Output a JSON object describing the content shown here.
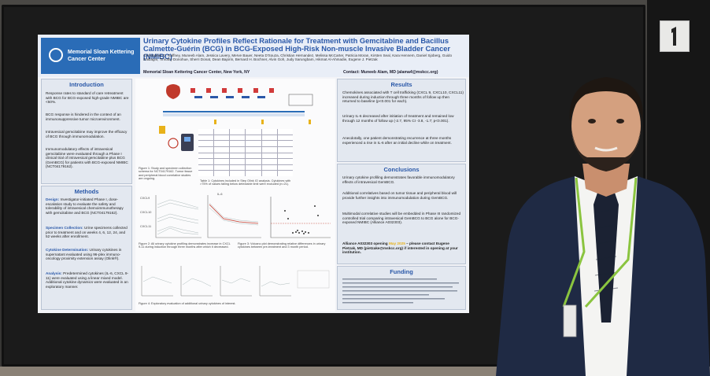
{
  "poster": {
    "logo": [
      "Memorial Sloan Kettering",
      "Cancer Center"
    ],
    "title": "Urinary Cytokine Profiles Reflect Rationale for Treatment with Gemcitabine and Bacillus Calmette-Guérin (BCG) in BCG-Exposed High-Risk Non-muscle Invasive Bladder Cancer (NMIBC)",
    "authors": "Christopher D. Gaffney, Muneeb Alam, Jessica Lavery, Merve Bauer, Neeta D'Souza, Christian Hernandez, Melissa McCarter, Patricia Moran, Kirsten Seal, Kara Hennem, Daniel Sjoberg, Guido Dalbagni, Timothy Donohue, Sherri Donat, Dean Bajorin, Bernard H. Bochner, Alvin Goh, Judy Sarungbam, Hikmat Al-Ahmadie, Eugene J. Pietzak",
    "institution": "Memorial Sloan Kettering Cancer Center, New York, NY",
    "contact": "Contact: Muneeb Alam, MD (alama4@mskcc.org)",
    "intro": {
      "heading": "Introduction",
      "bullets": [
        "Response rates to standard of care retreatment with BCG for BCG-exposed high-grade NMIBC are <50%.",
        "BCG response is hindered in the context of an immunosuppressive tumor microenvironment.",
        "Intravesical gemcitabine may improve the efficacy of BCG through immunomodulation.",
        "Immunomodulatory effects of intravesical gemcitabine were evaluated through a Phase I clinical trial of intravesical gemcitabine plus BCG (GemBCG) for patients with BCG-exposed NMIBC (NCT04179162)."
      ]
    },
    "methods": {
      "heading": "Methods",
      "items": [
        {
          "label": "Design:",
          "text": "Investigator-initiated Phase I, dose-escalation study to evaluate the safety and tolerability of intravesical chemoimmunotherapy with gemcitabine and BCG (NCT04179162)."
        },
        {
          "label": "Specimen Collection:",
          "text": "Urine specimens collected prior to treatment and on weeks 4, 6, 12, 24, and 52 weeks after enrollment."
        },
        {
          "label": "Cytokine Determination:",
          "text": "Urinary cytokines in supernatant evaluated using 96-plex immuno-oncology proximity extension assay (Olink®)."
        },
        {
          "label": "Analysis:",
          "text": "Predetermined cytokines (IL-6, CXCL 9-11) were evaluated using a linear mixed model. Additional cytokine dynamics were evaluated in an exploratory manner."
        }
      ]
    },
    "results": {
      "heading": "Results",
      "bullets": [
        "Chemokines associated with T cell trafficking (CXCL 9, CXCL10, CXCL11) increased during induction through three months of follow up then returned to baseline (p<0.001 for each).",
        "Urinary IL-6 decreased after initiation of treatment and remained low through 12 months of follow up (-2.7, 95% CI -3.8, -1.7; p<0.001).",
        "Anecdotally, one patient demonstrating recurrence at three months experienced a rise in IL-6 after an initial decline while on treatment."
      ]
    },
    "conclusions": {
      "heading": "Conclusions",
      "bullets": [
        "Urinary cytokine profiling demonstrates favorable immunomodulatory effects of intravesical GemBCG.",
        "Additional correlatives based on tumor tissue and peripheral blood will provide further insights into immunomodulation during GemBCG.",
        "Multimodal correlative studies will be embedded in Phase III randomized controlled trial comparing intravesical GemBCG to BCG alone for BCG-exposed NMIBC (Alliance A032303)."
      ],
      "alliance_a": "Alliance A032303 opening ",
      "alliance_hl": "May 2025",
      "alliance_b": " – please contact Eugene Pietzak, MD (pietzake@mskcc.org) if interested in opening at your institution."
    },
    "funding": {
      "heading": "Funding"
    },
    "figure_captions": {
      "fig1": "Figure 1: Study and specimen collection schema for NCT04179162. Tumor tissue and peripheral blood correlative studies are ongoing.",
      "table1": "Table 1: Cytokines included in Step Olink IO analysis. Cytokines with >75% of values falling below detectable limit were excluded (n=21).",
      "fig2": "Figure 2: All urinary cytokine profiling demonstrates increase in CXCL 9-11 during induction through three months after which it decreased.",
      "fig3": "Figure 3: Volcano plot demonstrating relative differences in urinary cytokines between pre-treatment and 3 month period.",
      "fig4": "Figure 4: Exploratory evaluation of additional urinary cytokines of interest."
    },
    "plot_labels": {
      "cxcl9": "CXCL9",
      "cxcl10": "CXCL10",
      "cxcl11": "CXCL11",
      "il6": "IL-6",
      "tnf": "TNF",
      "nk": "NK",
      "month": "weeks 12, 24, 52"
    }
  },
  "colors": {
    "brand_blue": "#2a6cb7",
    "heading_blue": "#2a58a8",
    "highlight": "#e8b21a"
  }
}
